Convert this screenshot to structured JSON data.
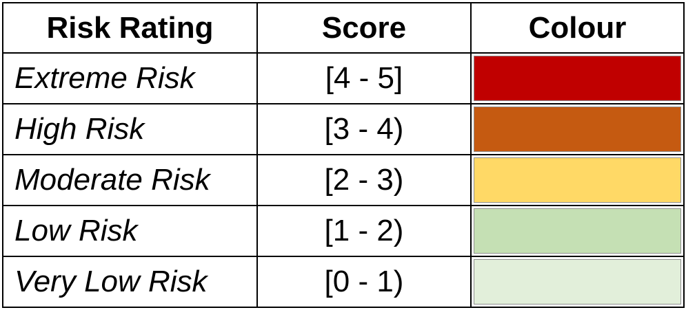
{
  "table": {
    "headers": {
      "rating": "Risk Rating",
      "score": "Score",
      "colour": "Colour"
    },
    "rows": [
      {
        "rating": "Extreme Risk",
        "score": "[4 - 5]",
        "colour": "#C00000"
      },
      {
        "rating": "High Risk",
        "score": "[3 - 4)",
        "colour": "#C55A11"
      },
      {
        "rating": "Moderate Risk",
        "score": "[2 - 3)",
        "colour": "#FFD966"
      },
      {
        "rating": "Low Risk",
        "score": "[1 - 2)",
        "colour": "#C5E0B4"
      },
      {
        "rating": "Very Low Risk",
        "score": "[0 - 1)",
        "colour": "#E2EFDA"
      }
    ]
  }
}
